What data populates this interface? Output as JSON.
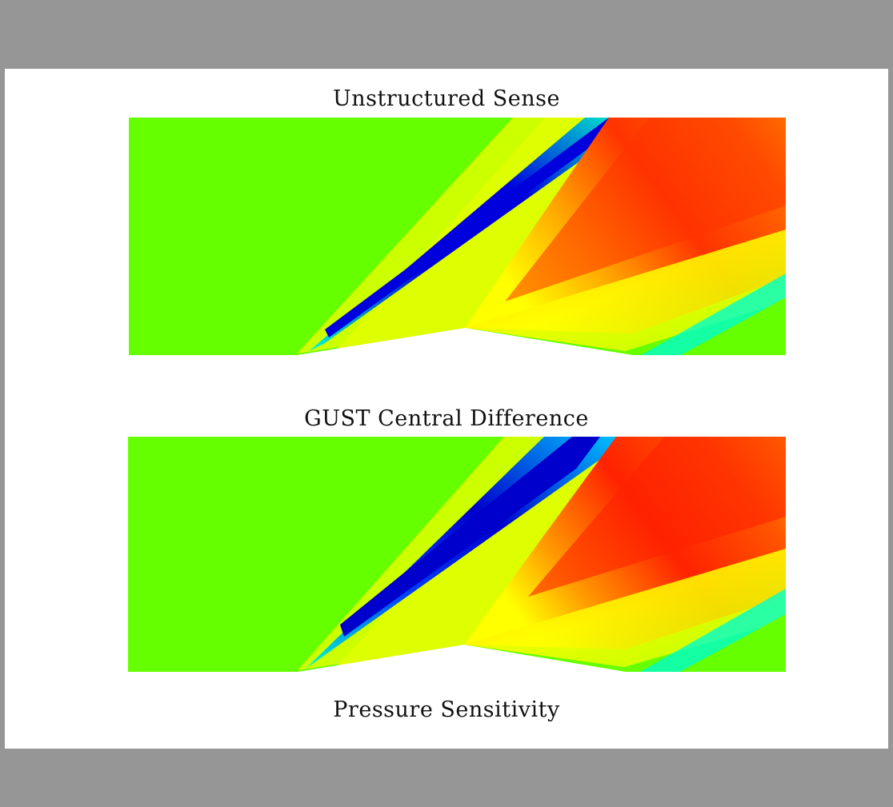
{
  "captions": {
    "top": "Unstructured Sense",
    "middle": "GUST Central Difference",
    "bottom": "Pressure Sensitivity"
  },
  "colors": {
    "frame": "#969696",
    "background": "#ffffff",
    "field_green": "#66ff00",
    "expansion_blue": "#0000dd",
    "shock_red": "#ff3300",
    "cyan": "#00ffcc",
    "yellow": "#ffff00"
  },
  "panels": [
    {
      "name": "unstructured-sense-plot",
      "colormap": "rainbow"
    },
    {
      "name": "gust-central-difference-plot",
      "colormap": "rainbow"
    }
  ]
}
